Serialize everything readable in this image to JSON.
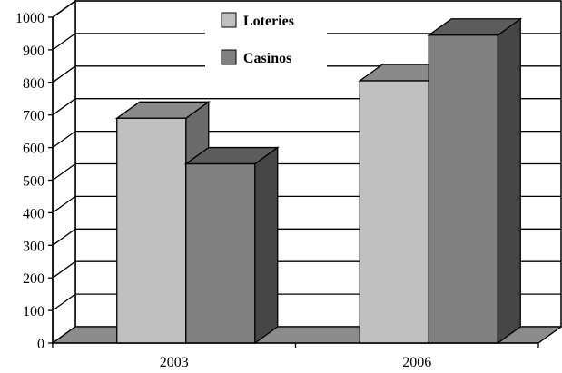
{
  "chart_data": {
    "type": "bar",
    "categories": [
      "2003",
      "2006"
    ],
    "series": [
      {
        "name": "Loteries",
        "values": [
          690,
          805
        ],
        "color": "#c0c0c0"
      },
      {
        "name": "Casinos",
        "values": [
          550,
          945
        ],
        "color": "#808080"
      }
    ],
    "ylim": [
      0,
      1000
    ],
    "yticks": [
      0,
      100,
      200,
      300,
      400,
      500,
      600,
      700,
      800,
      900,
      1000
    ],
    "grid": true,
    "legend_position": "top-center",
    "style": "3d-clustered-column"
  }
}
